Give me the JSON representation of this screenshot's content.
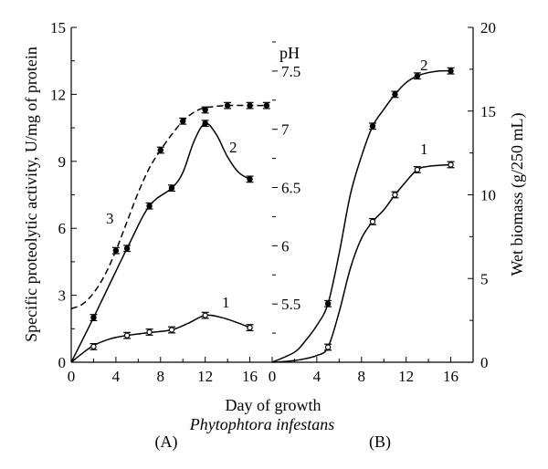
{
  "figure": {
    "x_axis_label": "Day of growth",
    "organism": "Phytophtora infestans"
  },
  "chart_data": [
    {
      "type": "line",
      "panel_label": "(A)",
      "ylabel": "Specific proteolytic activity, U/mg of protein",
      "xlim": [
        0,
        18
      ],
      "ylim": [
        0,
        15
      ],
      "x_ticks": [
        "0",
        "4",
        "8",
        "12",
        "16"
      ],
      "y_ticks": [
        "0",
        "3",
        "6",
        "9",
        "12",
        "15"
      ],
      "grid": false,
      "series": [
        {
          "name": "1",
          "marker": "open-circle",
          "line": "solid",
          "x": [
            2,
            5,
            7,
            9,
            12,
            16
          ],
          "y": [
            0.7,
            1.2,
            1.35,
            1.45,
            2.1,
            1.55
          ],
          "curve_x": [
            0,
            1,
            2,
            3.5,
            5,
            7,
            9,
            10.5,
            12,
            13.5,
            15,
            16
          ],
          "curve_y": [
            0,
            0.4,
            0.75,
            1.05,
            1.2,
            1.33,
            1.45,
            1.75,
            2.1,
            2.0,
            1.75,
            1.55
          ]
        },
        {
          "name": "2",
          "marker": "filled-circle",
          "line": "solid",
          "x": [
            2,
            5,
            7,
            9,
            12,
            16
          ],
          "y": [
            2.0,
            5.1,
            7.0,
            7.8,
            10.7,
            8.2
          ],
          "curve_x": [
            0,
            2,
            5,
            7,
            9,
            10,
            11,
            12,
            13,
            14,
            15,
            16
          ],
          "curve_y": [
            0,
            2.0,
            5.1,
            7.0,
            7.8,
            8.5,
            9.9,
            10.7,
            10.2,
            9.2,
            8.5,
            8.2
          ]
        },
        {
          "name": "3",
          "marker": "filled-circle",
          "line": "dashed",
          "x": [
            4,
            8,
            10,
            12,
            14,
            16,
            17.5
          ],
          "y": [
            5.0,
            9.5,
            10.8,
            11.3,
            11.5,
            11.5,
            11.5
          ],
          "curve_x": [
            0,
            1,
            2,
            3,
            4,
            5,
            6,
            7,
            8,
            9,
            10,
            11,
            12,
            14,
            16,
            17.5
          ],
          "curve_y": [
            2.4,
            2.6,
            3.1,
            3.9,
            5.0,
            6.3,
            7.6,
            8.7,
            9.5,
            10.2,
            10.8,
            11.2,
            11.4,
            11.5,
            11.5,
            11.5
          ]
        }
      ]
    },
    {
      "type": "line",
      "panel_label": "(B)",
      "ylabel_left": "pH",
      "ylabel": "Wet biomass (g/250 mL)",
      "xlim": [
        0,
        18
      ],
      "ylim_left": [
        5,
        7.875
      ],
      "ylim": [
        0,
        20
      ],
      "x_ticks": [
        "0",
        "4",
        "8",
        "12",
        "16"
      ],
      "y_ticks_left": [
        "5.5",
        "6",
        "6.5",
        "7",
        "7.5"
      ],
      "y_ticks": [
        "0",
        "5",
        "10",
        "15",
        "20"
      ],
      "grid": false,
      "series": [
        {
          "name": "1",
          "marker": "open-circle",
          "line": "solid",
          "axis": "right",
          "x": [
            5,
            9,
            11,
            13,
            16
          ],
          "y": [
            0.9,
            8.4,
            10.0,
            11.5,
            11.8
          ],
          "curve_x": [
            0,
            2,
            4,
            5,
            6,
            7,
            8,
            9,
            10,
            11,
            12,
            13,
            14,
            16
          ],
          "curve_y": [
            0,
            0.1,
            0.4,
            0.9,
            3.0,
            5.6,
            7.4,
            8.4,
            9.1,
            10.0,
            10.8,
            11.5,
            11.7,
            11.8
          ]
        },
        {
          "name": "2",
          "marker": "filled-circle",
          "line": "solid",
          "axis": "right",
          "x": [
            5,
            9,
            11,
            13,
            16
          ],
          "y": [
            3.5,
            14.1,
            16.0,
            17.1,
            17.4
          ],
          "curve_x": [
            0,
            2,
            3,
            4,
            5,
            6,
            7,
            8,
            9,
            10,
            11,
            12,
            13,
            14,
            15,
            16
          ],
          "curve_y": [
            0,
            0.6,
            1.3,
            2.2,
            3.5,
            6.5,
            10.0,
            12.3,
            14.1,
            15.1,
            16.0,
            16.7,
            17.1,
            17.3,
            17.4,
            17.4
          ]
        }
      ]
    }
  ]
}
